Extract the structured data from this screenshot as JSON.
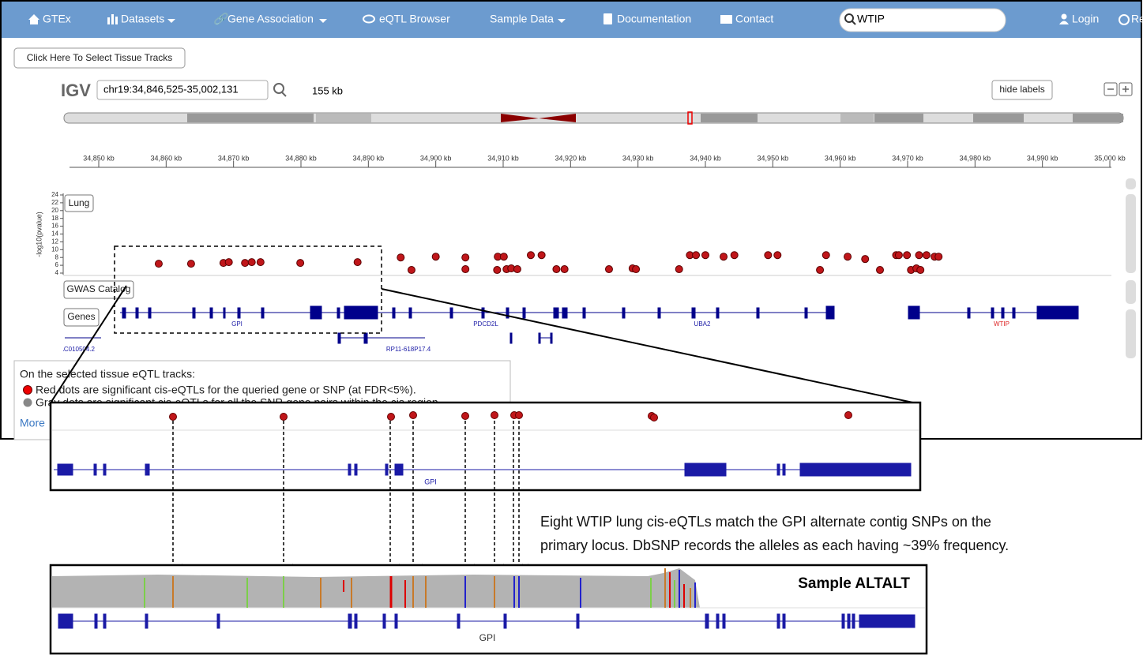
{
  "navbar": {
    "items": [
      "GTEx",
      "Datasets",
      "Gene Association",
      "eQTL Browser",
      "Sample Data",
      "Documentation",
      "Contact"
    ],
    "search": "WTIP",
    "login": "Login",
    "register": "Re"
  },
  "tissue_button": "Click Here To Select Tissue Tracks",
  "igv": {
    "logo": "IGV",
    "locus": "chr19:34,846,525-35,002,131",
    "span": "155 kb",
    "hide_labels": "hide labels",
    "ruler_ticks": [
      {
        "value": 34850,
        "label": "34,850 kb"
      },
      {
        "value": 34860,
        "label": "34,860 kb"
      },
      {
        "value": 34870,
        "label": "34,870 kb"
      },
      {
        "value": 34880,
        "label": "34,880 kb"
      },
      {
        "value": 34890,
        "label": "34,890 kb"
      },
      {
        "value": 34900,
        "label": "34,900 kb"
      },
      {
        "value": 34910,
        "label": "34,910 kb"
      },
      {
        "value": 34920,
        "label": "34,920 kb"
      },
      {
        "value": 34930,
        "label": "34,930 kb"
      },
      {
        "value": 34940,
        "label": "34,940 kb"
      },
      {
        "value": 34950,
        "label": "34,950 kb"
      },
      {
        "value": 34960,
        "label": "34,960 kb"
      },
      {
        "value": 34970,
        "label": "34,970 kb"
      },
      {
        "value": 34980,
        "label": "34,980 kb"
      },
      {
        "value": 34990,
        "label": "34,990 kb"
      },
      {
        "value": 35000,
        "label": "35,000 kb"
      }
    ],
    "y_axis": {
      "label": "-log10(pvalue)",
      "ticks": [
        24,
        22,
        20,
        18,
        16,
        14,
        12,
        10,
        8,
        6,
        4
      ]
    },
    "tracks": [
      "Lung",
      "GWAS Catalog",
      "Genes"
    ],
    "eqtls": {
      "position_kb": [
        34858.9,
        34863.7,
        34868.5,
        34869.3,
        34871.7,
        34872.7,
        34874.0,
        34879.9,
        34888.4,
        34894.8,
        34896.4,
        34900.0,
        34904.4,
        34904.4,
        34909.2,
        34910.1,
        34909.1,
        34910.5,
        34911.2,
        34912.1,
        34914.1,
        34915.7,
        34917.9,
        34919.1,
        34925.7,
        34929.2,
        34929.7,
        34936.1,
        34937.7,
        34938.6,
        34940.0,
        34942.7,
        34944.3,
        34949.3,
        34950.7,
        34957.0,
        34957.9,
        34961.1,
        34963.7,
        34965.9,
        34968.3,
        34968.7,
        34969.9,
        34970.5,
        34971.3,
        34971.7,
        34972.8,
        34971.9,
        34974.0,
        34974.6
      ],
      "neg_log10_p": [
        6.4,
        6.4,
        6.6,
        6.8,
        6.6,
        6.8,
        6.8,
        6.6,
        6.8,
        8.0,
        4.8,
        8.2,
        8.0,
        5.0,
        8.2,
        8.2,
        4.8,
        5.0,
        5.2,
        5.0,
        8.6,
        8.6,
        5.0,
        5.0,
        5.0,
        5.2,
        5.0,
        5.0,
        8.6,
        8.6,
        8.6,
        8.2,
        8.6,
        8.6,
        8.6,
        4.8,
        8.6,
        8.2,
        7.6,
        4.8,
        8.6,
        8.6,
        8.6,
        4.8,
        5.2,
        8.6,
        8.6,
        4.8,
        8.2,
        8.2
      ]
    },
    "genes": [
      "GPI",
      "PDCD2L",
      "UBA2",
      "WTIP",
      "RP11-618P17.4",
      "AC010504.2"
    ]
  },
  "legend": {
    "heading": "On the selected tissue eQTL tracks:",
    "red": "Red dots are significant cis-eQTLs for the queried gene or SNP (at FDR<5%).",
    "gray": "Gray dots are significant cis-eQTLs for all the SNP-gene pairs within the cis region.",
    "more": "More"
  },
  "zoom_gene": "GPI",
  "annotation": {
    "line1": "Eight WTIP lung cis-eQTLs match the GPI alternate contig SNPs on the",
    "line2": "primary locus. DbSNP records the alleles as each having ~39% frequency."
  },
  "sample_panel": {
    "title": "Sample ALTALT",
    "gene": "GPI"
  }
}
